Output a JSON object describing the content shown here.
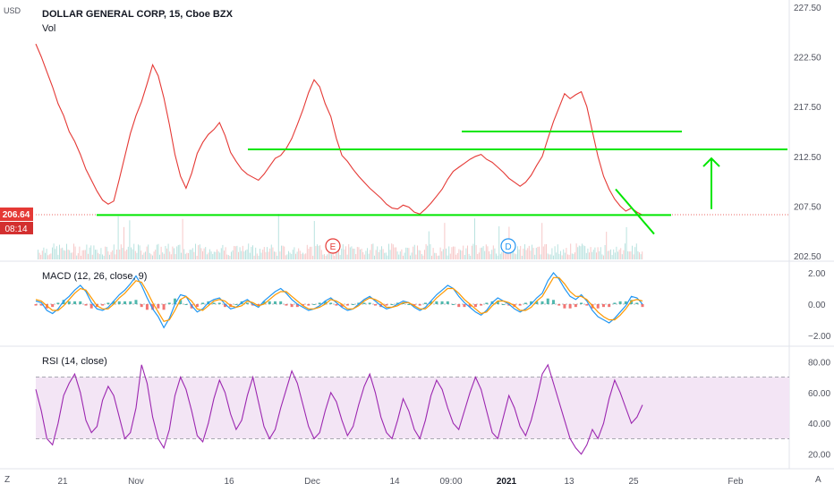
{
  "header": {
    "symbol": "DOLLAR GENERAL CORP, 15, Cboe BZX",
    "volume_label": "Vol",
    "currency": "USD"
  },
  "price_badge": {
    "price": "206.64",
    "countdown": "08:14"
  },
  "macd_label": "MACD (12, 26, close, 9)",
  "rsi_label": "RSI (14, close)",
  "corner_left": "Z",
  "corner_right": "A",
  "colors": {
    "price_line": "#e53935",
    "drawing_green": "#00e600",
    "macd_line": "#2196f3",
    "signal_line": "#ff9800",
    "rsi_line": "#9c27b0",
    "rsi_band": "#f3e5f5",
    "event_earnings": "#e53935",
    "event_dividend": "#2196f3"
  },
  "chart_data": {
    "type": "line",
    "x_ticks": [
      "21",
      "Nov",
      "16",
      "Dec",
      "14",
      "09:00",
      "2021",
      "13",
      "25",
      "Feb"
    ],
    "x_ticks_bold": [
      "2021"
    ],
    "price_pane": {
      "y_ticks": [
        "227.50",
        "222.50",
        "217.50",
        "212.50",
        "207.50",
        "202.50"
      ],
      "ylim": [
        202.5,
        227.5
      ],
      "series": [
        {
          "values": [
            223.8,
            222.5,
            221.0,
            219.5,
            217.8,
            216.6,
            215.0,
            214.0,
            212.7,
            211.2,
            210.1,
            209.0,
            208.1,
            207.7,
            208.0,
            210.2,
            212.5,
            214.8,
            216.6,
            218.0,
            219.8,
            221.7,
            220.6,
            218.4,
            215.7,
            212.7,
            210.5,
            209.3,
            210.8,
            212.8,
            213.9,
            214.7,
            215.2,
            215.9,
            214.6,
            212.9,
            212.0,
            211.2,
            210.7,
            210.4,
            210.1,
            210.7,
            211.5,
            212.3,
            212.6,
            213.3,
            214.3,
            215.7,
            217.2,
            218.9,
            220.2,
            219.5,
            217.8,
            216.5,
            214.3,
            212.6,
            212.0,
            211.2,
            210.5,
            209.9,
            209.3,
            208.8,
            208.3,
            207.7,
            207.3,
            207.2,
            207.6,
            207.4,
            206.9,
            206.7,
            207.2,
            207.8,
            208.5,
            209.2,
            210.2,
            211.0,
            211.4,
            211.8,
            212.2,
            212.5,
            212.7,
            212.2,
            211.9,
            211.4,
            210.9,
            210.3,
            209.9,
            209.5,
            209.9,
            210.6,
            211.6,
            212.5,
            214.3,
            216.0,
            217.4,
            218.8,
            218.3,
            218.7,
            219.0,
            217.5,
            215.0,
            212.5,
            210.5,
            209.2,
            208.2,
            207.5,
            207.0,
            207.3,
            206.9,
            206.6
          ],
          "x_range": [
            "Oct 15 2020",
            "Jan 26 2021"
          ]
        }
      ],
      "horizontal_lines": [
        206.64
      ],
      "events": [
        {
          "label": "E",
          "near_x": "Dec"
        },
        {
          "label": "D",
          "near_x": "2021"
        }
      ],
      "drawings": [
        {
          "kind": "horizontal-segment",
          "price": 206.6,
          "from": "Oct 17",
          "to": "Jan 28"
        },
        {
          "kind": "horizontal-segment",
          "price": 213.2,
          "from": "Nov 18",
          "to": "Feb 8"
        },
        {
          "kind": "horizontal-segment",
          "price": 215.0,
          "from": "Jan 2",
          "to": "Jan 31"
        },
        {
          "kind": "diagonal",
          "from_price": 209.2,
          "to_price": 204.7,
          "from": "Jan 20",
          "to": "Jan 27"
        },
        {
          "kind": "arrow-up",
          "from_price": 207.2,
          "to_price": 212.6,
          "at": "Feb 2"
        }
      ]
    },
    "macd_pane": {
      "y_ticks": [
        "2.00",
        "0.00",
        "−2.00"
      ],
      "ylim": [
        -2.4,
        2.4
      ],
      "series": [
        {
          "values": [
            0.2,
            0.1,
            -0.4,
            -0.6,
            -0.3,
            0.2,
            0.5,
            0.9,
            1.2,
            0.8,
            0.1,
            -0.3,
            -0.4,
            -0.2,
            0.2,
            0.6,
            0.9,
            1.3,
            1.8,
            1.2,
            0.4,
            -0.3,
            -0.8,
            -1.5,
            -0.9,
            0.0,
            0.6,
            0.5,
            -0.1,
            -0.5,
            -0.3,
            0.1,
            0.3,
            0.4,
            0.0,
            -0.3,
            -0.2,
            0.1,
            0.3,
            0.0,
            -0.2,
            0.2,
            0.5,
            0.8,
            1.0,
            0.7,
            0.3,
            0.0,
            -0.2,
            -0.4,
            -0.3,
            -0.1,
            0.2,
            0.4,
            0.1,
            -0.2,
            -0.4,
            -0.3,
            0.0,
            0.3,
            0.5,
            0.2,
            -0.1,
            -0.3,
            -0.2,
            0.0,
            0.2,
            0.1,
            -0.2,
            -0.4,
            -0.2,
            0.2,
            0.6,
            0.9,
            1.2,
            1.0,
            0.5,
            0.1,
            -0.2,
            -0.5,
            -0.7,
            -0.4,
            0.1,
            0.4,
            0.2,
            0.0,
            -0.3,
            -0.5,
            -0.3,
            0.0,
            0.4,
            0.7,
            1.5,
            2.0,
            1.6,
            1.0,
            0.5,
            0.3,
            0.6,
            0.2,
            -0.4,
            -0.8,
            -1.0,
            -1.2,
            -0.9,
            -0.5,
            -0.1,
            0.5,
            0.4,
            0.0
          ]
        },
        {
          "values": [
            0.3,
            0.2,
            -0.1,
            -0.4,
            -0.4,
            -0.1,
            0.3,
            0.7,
            1.0,
            0.9,
            0.4,
            -0.1,
            -0.3,
            -0.3,
            0.0,
            0.4,
            0.7,
            1.1,
            1.5,
            1.4,
            0.8,
            0.1,
            -0.5,
            -1.1,
            -1.0,
            -0.4,
            0.3,
            0.5,
            0.2,
            -0.3,
            -0.4,
            -0.1,
            0.2,
            0.3,
            0.2,
            -0.1,
            -0.2,
            -0.1,
            0.2,
            0.1,
            -0.1,
            0.0,
            0.3,
            0.6,
            0.8,
            0.8,
            0.5,
            0.2,
            -0.1,
            -0.3,
            -0.3,
            -0.2,
            0.0,
            0.3,
            0.2,
            0.0,
            -0.3,
            -0.3,
            -0.1,
            0.2,
            0.4,
            0.3,
            0.1,
            -0.2,
            -0.2,
            -0.1,
            0.1,
            0.1,
            -0.1,
            -0.3,
            -0.3,
            0.0,
            0.4,
            0.7,
            1.0,
            1.0,
            0.7,
            0.3,
            0.0,
            -0.3,
            -0.6,
            -0.5,
            -0.1,
            0.2,
            0.2,
            0.1,
            -0.1,
            -0.4,
            -0.4,
            -0.2,
            0.2,
            0.5,
            1.1,
            1.7,
            1.7,
            1.3,
            0.8,
            0.5,
            0.5,
            0.3,
            -0.1,
            -0.5,
            -0.8,
            -1.0,
            -1.0,
            -0.7,
            -0.3,
            0.2,
            0.3,
            0.2
          ]
        }
      ]
    },
    "rsi_pane": {
      "y_ticks": [
        "80.00",
        "60.00",
        "40.00",
        "20.00"
      ],
      "ylim": [
        14,
        86
      ],
      "band": [
        30,
        70
      ],
      "series": [
        {
          "values": [
            62,
            48,
            30,
            26,
            40,
            58,
            66,
            72,
            60,
            42,
            34,
            38,
            55,
            64,
            58,
            44,
            30,
            34,
            50,
            78,
            66,
            44,
            30,
            24,
            36,
            58,
            70,
            62,
            48,
            32,
            28,
            40,
            56,
            68,
            60,
            46,
            36,
            42,
            58,
            70,
            54,
            38,
            30,
            36,
            50,
            62,
            74,
            66,
            52,
            38,
            30,
            34,
            48,
            60,
            54,
            42,
            32,
            38,
            52,
            64,
            72,
            60,
            44,
            34,
            30,
            42,
            56,
            48,
            36,
            30,
            42,
            58,
            68,
            62,
            50,
            40,
            36,
            48,
            60,
            70,
            62,
            48,
            34,
            30,
            44,
            58,
            50,
            38,
            32,
            42,
            56,
            72,
            78,
            66,
            54,
            42,
            30,
            24,
            20,
            26,
            36,
            30,
            40,
            56,
            68,
            60,
            50,
            40,
            44,
            52
          ]
        }
      ]
    }
  }
}
